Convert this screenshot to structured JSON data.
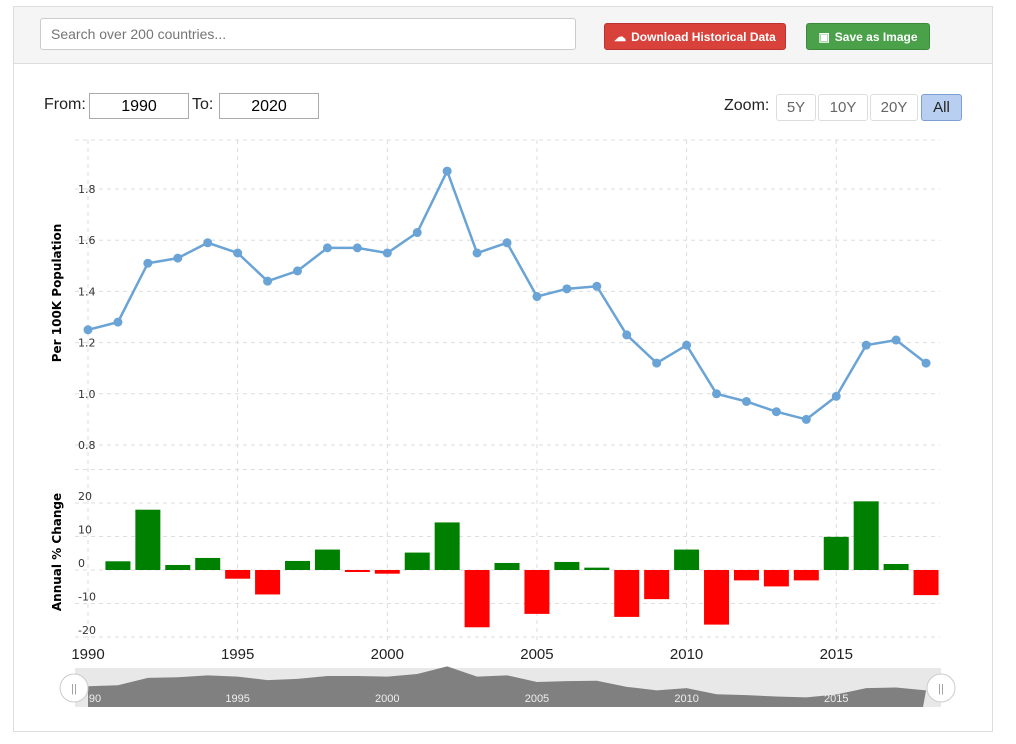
{
  "toolbar": {
    "search_placeholder": "Search over 200 countries...",
    "download_label": "Download Historical Data",
    "save_label": "Save as Image"
  },
  "range": {
    "from_label": "From:",
    "from_value": "1990",
    "to_label": "To:",
    "to_value": "2020",
    "zoom_label": "Zoom:",
    "zoom_options": [
      "5Y",
      "10Y",
      "20Y",
      "All"
    ],
    "zoom_selected": "All"
  },
  "colors": {
    "line": "#6aa3d5",
    "positive": "#008000",
    "negative": "#ff0000",
    "navigator": "#808080"
  },
  "chart_data": [
    {
      "type": "line",
      "ylabel": "Per 100K Population",
      "yticks": [
        "0.8",
        "1.0",
        "1.2",
        "1.4",
        "1.6",
        "1.8"
      ],
      "ylim": [
        0.8,
        2.0
      ],
      "grid": true,
      "x": [
        1990,
        1991,
        1992,
        1993,
        1994,
        1995,
        1996,
        1997,
        1998,
        1999,
        2000,
        2001,
        2002,
        2003,
        2004,
        2005,
        2006,
        2007,
        2008,
        2009,
        2010,
        2011,
        2012,
        2013,
        2014,
        2015,
        2016,
        2017,
        2018
      ],
      "values": [
        1.25,
        1.28,
        1.51,
        1.53,
        1.59,
        1.55,
        1.44,
        1.48,
        1.57,
        1.57,
        1.55,
        1.63,
        1.87,
        1.55,
        1.59,
        1.38,
        1.41,
        1.42,
        1.23,
        1.12,
        1.19,
        1.0,
        0.97,
        0.93,
        0.9,
        0.99,
        1.19,
        1.21,
        1.12
      ]
    },
    {
      "type": "bar",
      "ylabel": "Annual % Change",
      "yticks": [
        "20",
        "10",
        "0",
        "-10",
        "-20"
      ],
      "ylim": [
        -20,
        30
      ],
      "grid": true,
      "x": [
        1991,
        1992,
        1993,
        1994,
        1995,
        1996,
        1997,
        1998,
        1999,
        2000,
        2001,
        2002,
        2003,
        2004,
        2005,
        2006,
        2007,
        2008,
        2009,
        2010,
        2011,
        2012,
        2013,
        2014,
        2015,
        2016,
        2017,
        2018
      ],
      "values": [
        2.6,
        18.0,
        1.5,
        3.6,
        -2.6,
        -7.3,
        2.7,
        6.1,
        -0.6,
        -1.1,
        5.2,
        14.2,
        -17.1,
        2.1,
        -13.1,
        2.4,
        0.7,
        -14.0,
        -8.7,
        6.1,
        -16.3,
        -3.1,
        -4.9,
        -3.1,
        9.9,
        20.5,
        1.8,
        -7.5
      ]
    }
  ],
  "xticks": [
    "1990",
    "1995",
    "2000",
    "2005",
    "2010",
    "2015"
  ],
  "navigator_ticks": [
    "90",
    "1995",
    "2000",
    "2005",
    "2010",
    "2015"
  ]
}
